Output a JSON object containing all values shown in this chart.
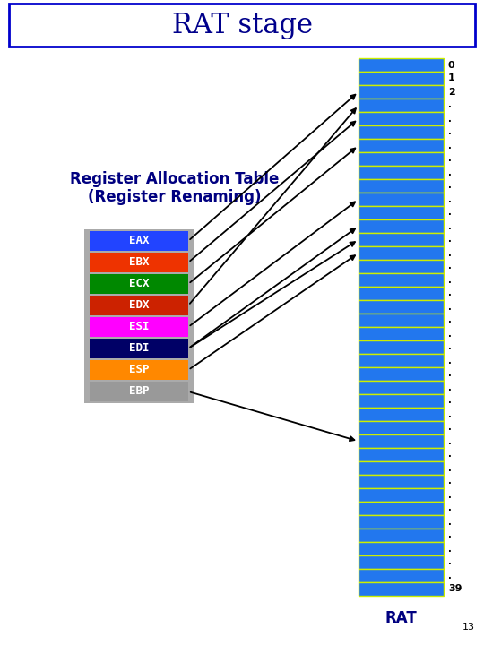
{
  "title": "RAT stage",
  "title_color": "#00008B",
  "title_fontsize": 22,
  "background_color": "#FFFFFF",
  "border_color": "#0000CC",
  "num_rat_entries": 40,
  "rat_fill_color": "#2277EE",
  "rat_border_color": "#CCEE00",
  "rat_label": "RAT",
  "rat_label_color": "#000080",
  "rat_label_fontsize": 12,
  "registers": [
    "EAX",
    "EBX",
    "ECX",
    "EDX",
    "ESI",
    "EDI",
    "ESP",
    "EBP"
  ],
  "reg_colors": [
    "#2244FF",
    "#EE3300",
    "#008800",
    "#CC2200",
    "#FF00FF",
    "#000066",
    "#FF8800",
    "#999999"
  ],
  "reg_text_color": "#FFFFFF",
  "reg_fontsize": 9,
  "label_text": "Register Allocation Table\n(Register Renaming)",
  "label_fontsize": 12,
  "label_color": "#000080",
  "page_num": "13",
  "arrows": [
    {
      "from_reg": 0,
      "to_rat": 2
    },
    {
      "from_reg": 1,
      "to_rat": 4
    },
    {
      "from_reg": 2,
      "to_rat": 6
    },
    {
      "from_reg": 3,
      "to_rat": 3
    },
    {
      "from_reg": 4,
      "to_rat": 10
    },
    {
      "from_reg": 5,
      "to_rat": 12
    },
    {
      "from_reg": 5,
      "to_rat": 13
    },
    {
      "from_reg": 6,
      "to_rat": 14
    },
    {
      "from_reg": 7,
      "to_rat": 28
    }
  ]
}
